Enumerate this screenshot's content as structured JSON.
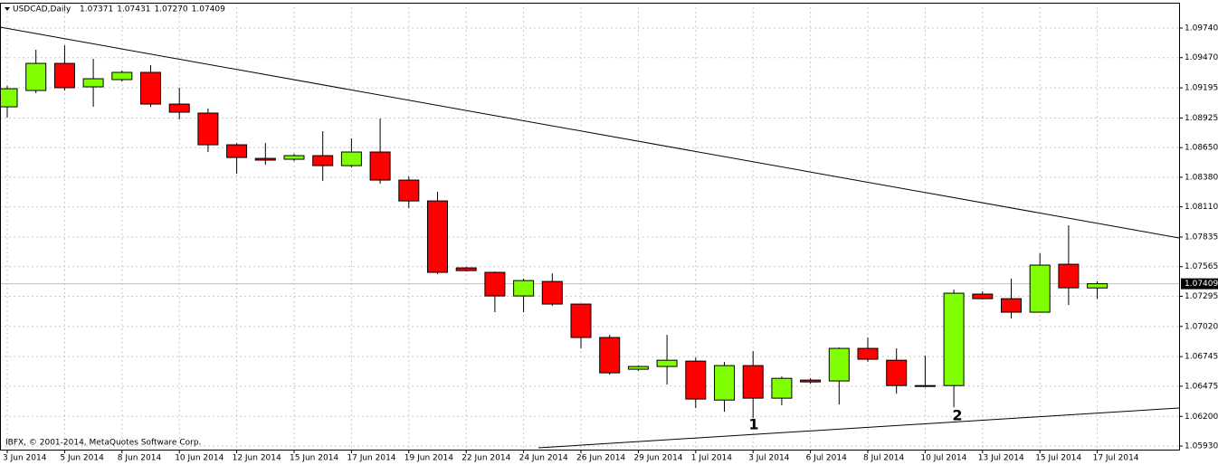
{
  "chart_data": {
    "type": "candlestick",
    "title": "USDCAD,Daily",
    "header_values": [
      "1.07371",
      "1.07431",
      "1.07270",
      "1.07409"
    ],
    "copyright": "IBFX, © 2001-2014, MetaQuotes Software Corp.",
    "annotations": [
      "1",
      "2"
    ],
    "categories": [
      "3 Jun 2014",
      null,
      "5 Jun 2014",
      null,
      "8 Jun 2014",
      null,
      "10 Jun 2014",
      null,
      "12 Jun 2014",
      null,
      "15 Jun 2014",
      null,
      "17 Jun 2014",
      null,
      "19 Jun 2014",
      null,
      "22 Jun 2014",
      null,
      "24 Jun 2014",
      null,
      "26 Jun 2014",
      null,
      "29 Jun 2014",
      null,
      "1 Jul 2014",
      null,
      "3 Jul 2014",
      null,
      "6 Jul 2014",
      null,
      "8 Jul 2014",
      null,
      "10 Jul 2014",
      null,
      "13 Jul 2014",
      null,
      "15 Jul 2014",
      null,
      "17 Jul 2014"
    ],
    "open": [
      1.09022,
      1.09171,
      1.09418,
      1.09204,
      1.0927,
      1.09336,
      1.09047,
      1.08965,
      1.08676,
      1.08552,
      1.08544,
      1.08577,
      1.08486,
      1.0861,
      1.08354,
      1.08164,
      1.07554,
      1.07513,
      1.07298,
      1.0743,
      1.07224,
      1.06919,
      1.0663,
      1.06655,
      1.06704,
      1.06349,
      1.06663,
      1.06366,
      1.06531,
      1.06523,
      1.0682,
      1.06712,
      1.06481,
      1.06481,
      1.07315,
      1.07273,
      1.0715,
      1.07587,
      1.07371
    ],
    "high": [
      1.09212,
      1.09542,
      1.09583,
      1.0946,
      1.09352,
      1.09402,
      1.09196,
      1.09006,
      1.08692,
      1.08692,
      1.08593,
      1.088,
      1.08734,
      1.08915,
      1.08387,
      1.08247,
      1.07562,
      1.07521,
      1.07455,
      1.07504,
      1.07224,
      1.06943,
      1.06663,
      1.06943,
      1.06737,
      1.06696,
      1.06795,
      1.06564,
      1.06547,
      1.06828,
      1.06919,
      1.0682,
      1.06754,
      1.07356,
      1.07339,
      1.07455,
      1.07686,
      1.07942,
      1.07431
    ],
    "low": [
      1.08923,
      1.09146,
      1.09171,
      1.09022,
      1.09253,
      1.09022,
      1.08907,
      1.0861,
      1.08412,
      1.08494,
      1.08527,
      1.08346,
      1.0847,
      1.08321,
      1.08098,
      1.07496,
      1.07521,
      1.0715,
      1.0715,
      1.07207,
      1.0682,
      1.0658,
      1.06613,
      1.0649,
      1.06275,
      1.06242,
      1.06184,
      1.063,
      1.06498,
      1.06308,
      1.06696,
      1.06407,
      1.06465,
      1.06283,
      1.07265,
      1.07092,
      1.0715,
      1.07216,
      1.0727
    ],
    "close": [
      1.09187,
      1.09418,
      1.09196,
      1.09278,
      1.09336,
      1.09047,
      1.08973,
      1.08676,
      1.0856,
      1.08536,
      1.08577,
      1.08486,
      1.0861,
      1.08354,
      1.08164,
      1.07513,
      1.07529,
      1.07298,
      1.07438,
      1.07224,
      1.06919,
      1.06597,
      1.06655,
      1.06712,
      1.06358,
      1.06663,
      1.06366,
      1.06547,
      1.06514,
      1.0682,
      1.06721,
      1.06481,
      1.06478,
      1.07323,
      1.07273,
      1.0715,
      1.07579,
      1.07372,
      1.07409
    ],
    "up_color": "#80ff00",
    "down_color": "#ff0000",
    "ylim": [
      1.05897,
      1.09971
    ],
    "yticks": [
      {
        "value": 1.0974,
        "label": "1.09740"
      },
      {
        "value": 1.0947,
        "label": "1.09470"
      },
      1.09195,
      {
        "value": 1.0892,
        "label": "1.08925"
      },
      {
        "value": 1.0865,
        "label": "1.08650"
      },
      {
        "value": 1.0838,
        "label": "1.08380"
      },
      {
        "value": 1.0811,
        "label": "1.08110"
      },
      1.07835,
      1.07565,
      1.07295,
      {
        "value": 1.0702,
        "label": "1.07020"
      },
      1.06745,
      1.06475,
      {
        "value": 1.062,
        "label": "1.06200"
      },
      {
        "value": 1.0593,
        "label": "1.05930"
      }
    ],
    "last_price": {
      "value": 1.07409,
      "label": "1.07409"
    },
    "grid": true
  }
}
